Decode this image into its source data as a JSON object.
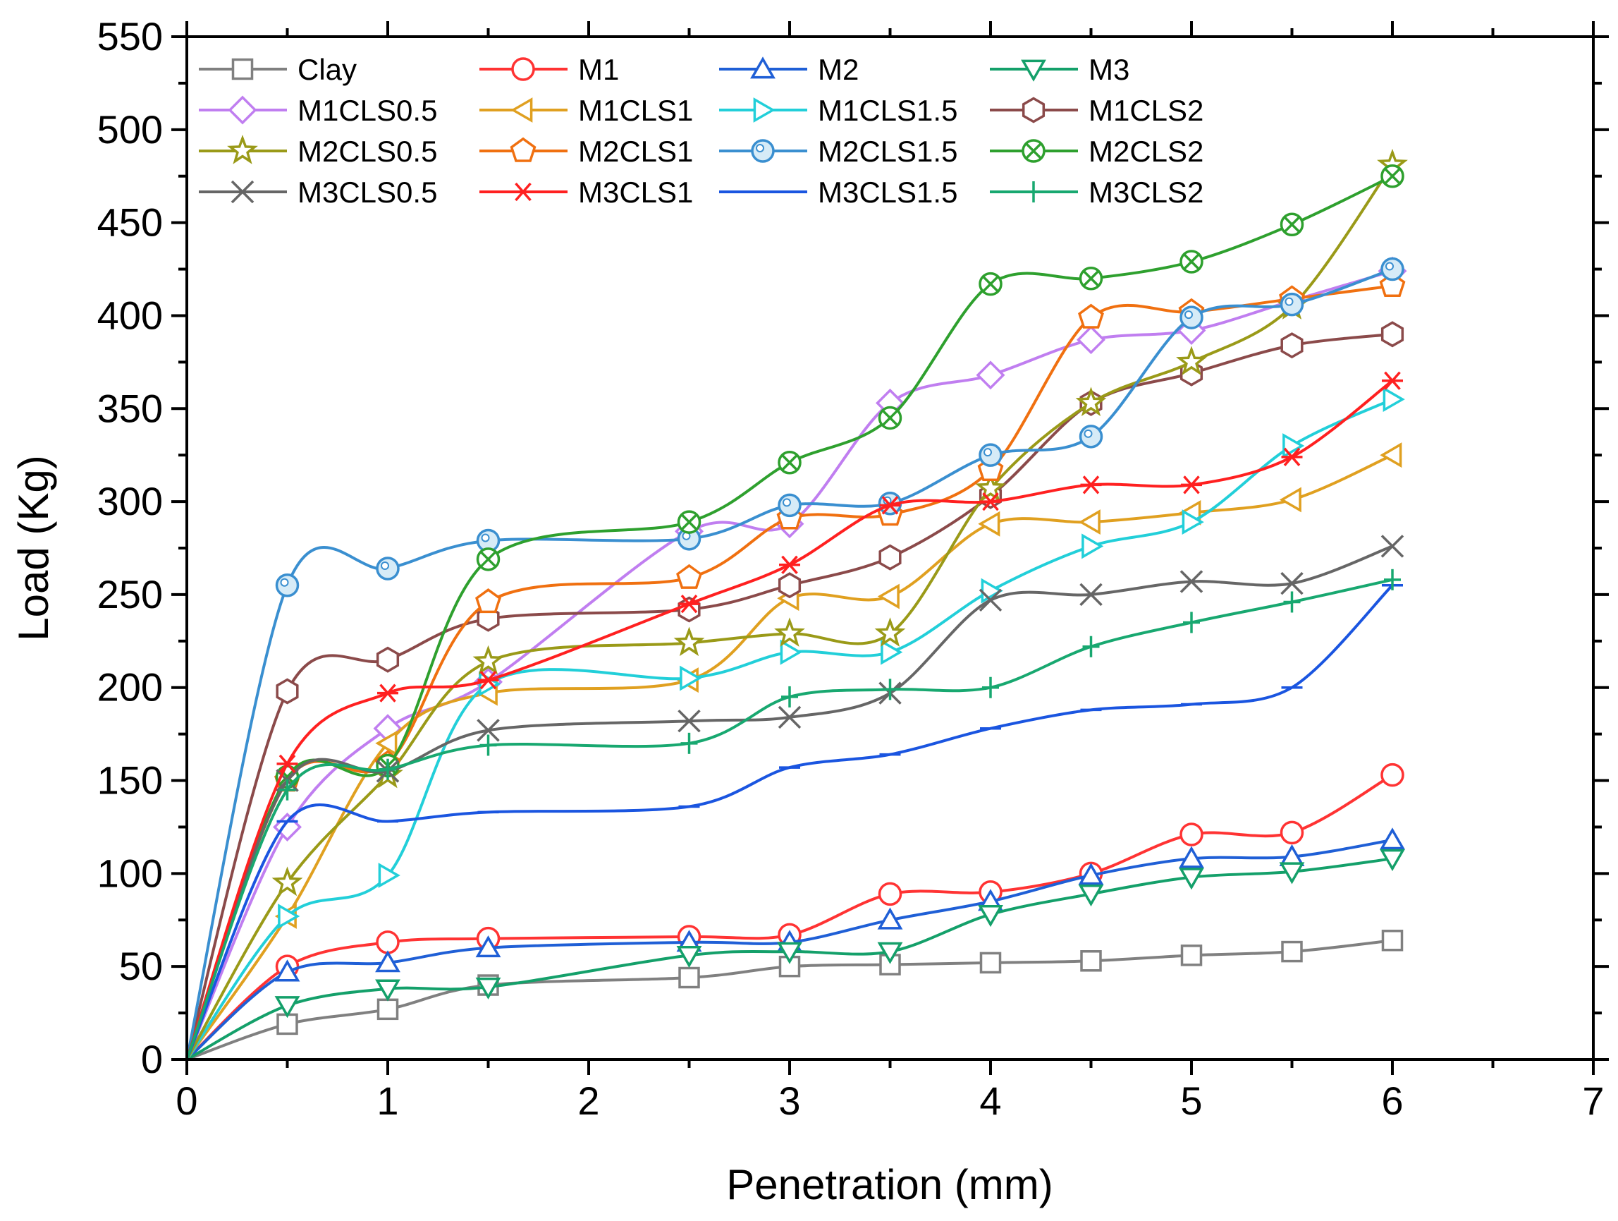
{
  "chart_data": {
    "type": "line",
    "title": "",
    "xlabel": "Penetration (mm)",
    "ylabel": "Load (Kg)",
    "xlim": [
      0,
      7
    ],
    "ylim": [
      0,
      550
    ],
    "x_ticks": [
      "0",
      "1",
      "2",
      "3",
      "4",
      "5",
      "6",
      "7"
    ],
    "y_ticks": [
      "0",
      "50",
      "100",
      "150",
      "200",
      "250",
      "300",
      "350",
      "400",
      "450",
      "500",
      "550"
    ],
    "grid": false,
    "legend_position": "top-left",
    "series": [
      {
        "name": "Clay",
        "color": "#808080",
        "marker": "square",
        "x": [
          0,
          0.5,
          1,
          1.5,
          2.5,
          3,
          3.5,
          4,
          4.5,
          5,
          5.5,
          6
        ],
        "values": [
          0,
          19,
          27,
          40,
          44,
          50,
          51,
          52,
          53,
          56,
          58,
          64
        ]
      },
      {
        "name": "M1",
        "color": "#ff3333",
        "marker": "circle",
        "x": [
          0,
          0.5,
          1,
          1.5,
          2.5,
          3,
          3.5,
          4,
          4.5,
          5,
          5.5,
          6
        ],
        "values": [
          0,
          50,
          63,
          65,
          66,
          67,
          89,
          90,
          100,
          121,
          122,
          153
        ]
      },
      {
        "name": "M2",
        "color": "#1f5fd6",
        "marker": "triangle-up",
        "x": [
          0,
          0.5,
          1,
          1.5,
          2.5,
          3,
          3.5,
          4,
          4.5,
          5,
          5.5,
          6
        ],
        "values": [
          0,
          47,
          52,
          60,
          63,
          63,
          75,
          85,
          99,
          108,
          109,
          118
        ]
      },
      {
        "name": "M3",
        "color": "#14a06a",
        "marker": "triangle-down",
        "x": [
          0,
          0.5,
          1,
          1.5,
          2.5,
          3,
          3.5,
          4,
          4.5,
          5,
          5.5,
          6
        ],
        "values": [
          0,
          29,
          38,
          39,
          56,
          58,
          58,
          78,
          89,
          98,
          101,
          108
        ]
      },
      {
        "name": "M1CLS0.5",
        "color": "#c07ef0",
        "marker": "diamond",
        "x": [
          0,
          0.5,
          1,
          1.5,
          2.5,
          3,
          3.5,
          4,
          4.5,
          5,
          5.5,
          6
        ],
        "values": [
          0,
          125,
          178,
          203,
          284,
          288,
          353,
          368,
          387,
          392,
          408,
          424
        ]
      },
      {
        "name": "M1CLS1",
        "color": "#e0a020",
        "marker": "triangle-left",
        "x": [
          0,
          0.5,
          1,
          1.5,
          2.5,
          3,
          3.5,
          4,
          4.5,
          5,
          5.5,
          6
        ],
        "values": [
          0,
          77,
          170,
          197,
          204,
          248,
          249,
          288,
          289,
          294,
          301,
          325
        ]
      },
      {
        "name": "M1CLS1.5",
        "color": "#22cfd9",
        "marker": "triangle-right",
        "x": [
          0,
          0.5,
          1,
          1.5,
          2.5,
          3,
          3.5,
          4,
          4.5,
          5,
          5.5,
          6
        ],
        "values": [
          0,
          77,
          99,
          202,
          205,
          219,
          219,
          252,
          276,
          289,
          330,
          355
        ]
      },
      {
        "name": "M1CLS2",
        "color": "#8b4a4a",
        "marker": "hexagon",
        "x": [
          0,
          0.5,
          1,
          1.5,
          2.5,
          3,
          3.5,
          4,
          4.5,
          5,
          5.5,
          6
        ],
        "values": [
          0,
          198,
          215,
          237,
          242,
          255,
          270,
          303,
          353,
          369,
          384,
          390
        ]
      },
      {
        "name": "M2CLS0.5",
        "color": "#9a9a18",
        "marker": "star",
        "x": [
          0,
          0.5,
          1,
          1.5,
          2.5,
          3,
          3.5,
          4,
          4.5,
          5,
          5.5,
          6
        ],
        "values": [
          0,
          95,
          153,
          214,
          224,
          229,
          229,
          307,
          353,
          375,
          405,
          481
        ]
      },
      {
        "name": "M2CLS1",
        "color": "#f07010",
        "marker": "pentagon",
        "x": [
          0,
          0.5,
          1,
          1.5,
          2.5,
          3,
          3.5,
          4,
          4.5,
          5,
          5.5,
          6
        ],
        "values": [
          0,
          150,
          159,
          246,
          259,
          291,
          293,
          317,
          399,
          402,
          409,
          416
        ]
      },
      {
        "name": "M2CLS1.5",
        "color": "#3a8fd0",
        "marker": "sphere",
        "x": [
          0,
          0.5,
          1,
          1.5,
          2.5,
          3,
          3.5,
          4,
          4.5,
          5,
          5.5,
          6
        ],
        "values": [
          0,
          255,
          264,
          279,
          280,
          298,
          299,
          325,
          335,
          399,
          406,
          425
        ]
      },
      {
        "name": "M2CLS2",
        "color": "#2ea02e",
        "marker": "circle-x",
        "x": [
          0,
          0.5,
          1,
          1.5,
          2.5,
          3,
          3.5,
          4,
          4.5,
          5,
          5.5,
          6
        ],
        "values": [
          0,
          152,
          158,
          269,
          289,
          321,
          345,
          417,
          420,
          429,
          449,
          475
        ]
      },
      {
        "name": "M3CLS0.5",
        "color": "#666666",
        "marker": "x",
        "x": [
          0,
          0.5,
          1,
          1.5,
          2.5,
          3,
          3.5,
          4,
          4.5,
          5,
          5.5,
          6
        ],
        "values": [
          0,
          150,
          155,
          177,
          182,
          184,
          197,
          247,
          250,
          257,
          256,
          276
        ]
      },
      {
        "name": "M3CLS1",
        "color": "#ff2020",
        "marker": "asterisk",
        "x": [
          0,
          0.5,
          1,
          1.5,
          2.5,
          3,
          3.5,
          4,
          4.5,
          5,
          5.5,
          6
        ],
        "values": [
          0,
          159,
          197,
          204,
          245,
          266,
          298,
          300,
          309,
          309,
          324,
          365
        ]
      },
      {
        "name": "M3CLS1.5",
        "color": "#1a55e0",
        "marker": "dash",
        "x": [
          0,
          0.5,
          1,
          1.5,
          2.5,
          3,
          3.5,
          4,
          4.5,
          5,
          5.5,
          6
        ],
        "values": [
          0,
          128,
          128,
          133,
          136,
          157,
          164,
          178,
          188,
          191,
          200,
          255
        ]
      },
      {
        "name": "M3CLS2",
        "color": "#18a870",
        "marker": "plus",
        "x": [
          0,
          0.5,
          1,
          1.5,
          2.5,
          3,
          3.5,
          4,
          4.5,
          5,
          5.5,
          6
        ],
        "values": [
          0,
          145,
          156,
          169,
          170,
          195,
          199,
          200,
          222,
          235,
          246,
          258
        ]
      }
    ]
  }
}
